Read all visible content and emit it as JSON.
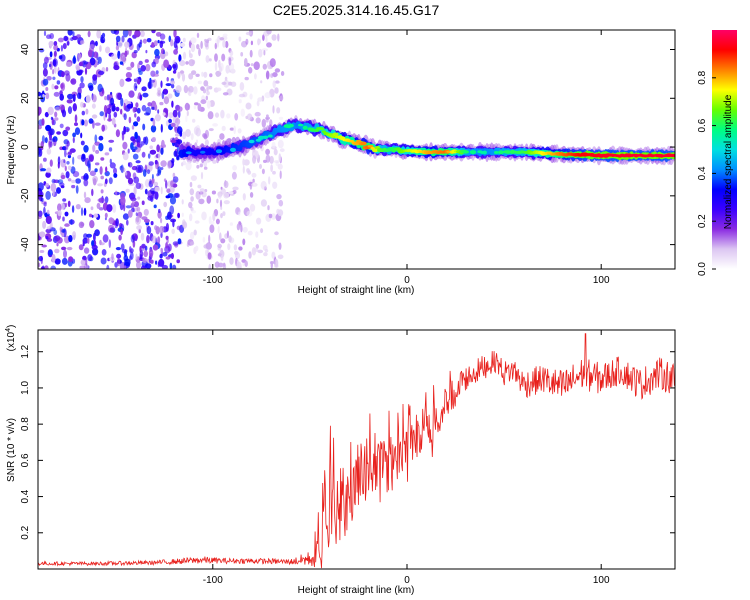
{
  "title": "C2E5.2025.314.16.45.G17",
  "chart_data": [
    {
      "type": "heatmap",
      "name": "spectrogram",
      "xlabel": "Height of straight line (km)",
      "ylabel": "Frequency (Hz)",
      "xlim": [
        -190,
        138
      ],
      "ylim": [
        -50,
        48
      ],
      "xticks": [
        -100,
        0,
        100
      ],
      "yticks": [
        -40,
        -20,
        0,
        20,
        40
      ],
      "xtick_labels": [
        "-100",
        "0",
        "100"
      ],
      "ytick_labels": [
        "-40",
        "-20",
        "0",
        "20",
        "40"
      ],
      "colorbar": {
        "label": "Normalized spectral amplitude",
        "range": [
          0,
          1
        ],
        "ticks": [
          0.0,
          0.2,
          0.4,
          0.6,
          0.8
        ],
        "tick_labels": [
          "0.0",
          "0.2",
          "0.4",
          "0.6",
          "0.8"
        ],
        "colormap": [
          "#ffffff",
          "#dcc6f2",
          "#8a2be2",
          "#3a00ff",
          "#0000ff",
          "#0090ff",
          "#00e0e0",
          "#00ff80",
          "#66ff00",
          "#ffff00",
          "#ff8000",
          "#ff0000",
          "#ff0066"
        ]
      },
      "noise_regions": [
        {
          "x_range": [
            -190,
            -116
          ],
          "y_range": [
            -50,
            48
          ],
          "level": 0.28
        },
        {
          "x_range": [
            -116,
            -64
          ],
          "y_range": [
            -50,
            48
          ],
          "level": 0.1
        }
      ],
      "ridge": {
        "x": [
          -116,
          -110,
          -104,
          -98,
          -92,
          -86,
          -80,
          -74,
          -68,
          -62,
          -56,
          -50,
          -44,
          -38,
          -32,
          -26,
          -20,
          -14,
          -8,
          0,
          10,
          20,
          30,
          40,
          50,
          60,
          70,
          80,
          90,
          100,
          110,
          120,
          130,
          138
        ],
        "frequency": [
          -2,
          -2,
          -2,
          -2,
          -1,
          0,
          2,
          4,
          6,
          8,
          9,
          8,
          7,
          5,
          3,
          2,
          0,
          -1,
          -1,
          -1.5,
          -2,
          -2,
          -2,
          -2,
          -2,
          -2,
          -2.5,
          -3,
          -3.2,
          -3.4,
          -3.5,
          -3.5,
          -3.5,
          -3.5
        ],
        "amplitude": [
          0.45,
          0.4,
          0.4,
          0.42,
          0.45,
          0.48,
          0.5,
          0.52,
          0.55,
          0.58,
          0.55,
          0.6,
          0.65,
          0.7,
          0.75,
          0.8,
          0.85,
          0.65,
          0.6,
          0.7,
          0.8,
          0.85,
          0.6,
          0.55,
          0.6,
          0.62,
          0.75,
          0.85,
          0.92,
          0.94,
          0.95,
          0.95,
          0.95,
          0.95
        ]
      }
    },
    {
      "type": "line",
      "name": "snr",
      "xlabel": "Height of straight line (km)",
      "ylabel": "SNR (10 * v/v)",
      "y_multiplier_label": "(x10",
      "y_multiplier_exp": "4",
      "xlim": [
        -190,
        138
      ],
      "ylim": [
        0,
        1.32
      ],
      "xticks": [
        -100,
        0,
        100
      ],
      "yticks": [
        0.2,
        0.4,
        0.6,
        0.8,
        1.0,
        1.2
      ],
      "xtick_labels": [
        "-100",
        "0",
        "100"
      ],
      "ytick_labels": [
        "0.2",
        "0.4",
        "0.6",
        "0.8",
        "1.0",
        "1.2"
      ],
      "color": "#e8201c",
      "series": [
        {
          "name": "SNR",
          "x": [
            -190,
            -160,
            -130,
            -105,
            -95,
            -80,
            -60,
            -48,
            -44,
            -40,
            -36,
            -32,
            -28,
            -20,
            -10,
            0,
            10,
            20,
            24,
            30,
            40,
            46,
            50,
            55,
            60,
            70,
            80,
            90,
            100,
            110,
            120,
            130,
            138
          ],
          "values": [
            0.03,
            0.03,
            0.035,
            0.05,
            0.045,
            0.045,
            0.04,
            0.06,
            0.15,
            0.45,
            0.3,
            0.35,
            0.45,
            0.55,
            0.62,
            0.68,
            0.78,
            0.9,
            0.95,
            1.05,
            1.12,
            1.15,
            1.08,
            1.1,
            1.02,
            1.05,
            1.0,
            1.08,
            1.05,
            1.1,
            1.02,
            1.08,
            1.05
          ],
          "noise": [
            0.01,
            0.01,
            0.012,
            0.02,
            0.015,
            0.015,
            0.015,
            0.05,
            0.15,
            0.25,
            0.2,
            0.18,
            0.18,
            0.16,
            0.14,
            0.12,
            0.12,
            0.1,
            0.1,
            0.07,
            0.07,
            0.06,
            0.07,
            0.07,
            0.08,
            0.08,
            0.1,
            0.09,
            0.09,
            0.08,
            0.09,
            0.09,
            0.09
          ]
        }
      ]
    }
  ]
}
